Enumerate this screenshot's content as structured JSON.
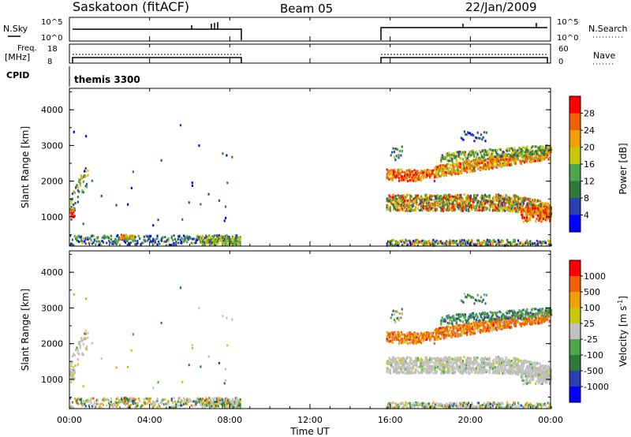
{
  "header": {
    "station": "Saskatoon (fitACF)",
    "beam": "Beam 05",
    "date": "22/Jan/2009"
  },
  "panel_labels": {
    "nsky": "N.Sky",
    "nsky_scale_top": "10^5",
    "nsky_scale_bottom": "10^0",
    "nsearch": "N.Search",
    "nsearch_scale_top": "10^5",
    "nsearch_scale_bottom": "10^0",
    "freq_line1": "Freq.",
    "freq_line2": "[MHz]",
    "freq_top": "18",
    "freq_bottom": "8",
    "nave": "Nave",
    "nave_top": "60",
    "nave_bottom": "0",
    "cpid": "CPID",
    "cpid_value": "themis 3300"
  },
  "colors": {
    "power_scale": [
      "#0000ff",
      "#2a3fb0",
      "#2f7a3a",
      "#4aa84a",
      "#c8c800",
      "#f0a000",
      "#f06000",
      "#ff0000"
    ],
    "velocity_scale": [
      "#ff0000",
      "#f06000",
      "#f0a000",
      "#c8c800",
      "#c0c0c0",
      "#4aa84a",
      "#2f7a3a",
      "#2a3fb0",
      "#0000ff"
    ]
  },
  "chart_data": [
    {
      "type": "heatmap",
      "title": "",
      "ylabel": "Slant Range [km]",
      "xlabel": "",
      "ylim": [
        180,
        4600
      ],
      "yticks": [
        "1000",
        "2000",
        "3000",
        "4000"
      ],
      "colorbar_label": "Power [dB]",
      "colorbar_ticks": [
        "4",
        "8",
        "12",
        "16",
        "20",
        "24",
        "28"
      ],
      "data_gap_hours": [
        8.5,
        15.8
      ],
      "bands": [
        {
          "t0": 0.0,
          "t1": 0.8,
          "r0": 800,
          "r1": 2300,
          "level": "high"
        },
        {
          "t0": 0.0,
          "t1": 8.5,
          "r0": 200,
          "r1": 600,
          "level": "low"
        },
        {
          "t0": 15.8,
          "t1": 24.0,
          "r0": 1000,
          "r1": 1700,
          "level": "high"
        },
        {
          "t0": 15.8,
          "t1": 24.0,
          "r0": 1900,
          "r1": 3000,
          "level": "high"
        }
      ]
    },
    {
      "type": "heatmap",
      "title": "",
      "ylabel": "Slant Range [km]",
      "xlabel": "Time UT",
      "ylim": [
        180,
        4600
      ],
      "yticks": [
        "1000",
        "2000",
        "3000",
        "4000"
      ],
      "colorbar_label": "Velocity [m s^-1]",
      "colorbar_ticks": [
        "1000",
        "500",
        "100",
        "25",
        "-25",
        "-100",
        "-500",
        "-1000"
      ],
      "xticks": [
        "00:00",
        "04:00",
        "08:00",
        "12:00",
        "16:00",
        "20:00",
        "00:00"
      ]
    }
  ]
}
